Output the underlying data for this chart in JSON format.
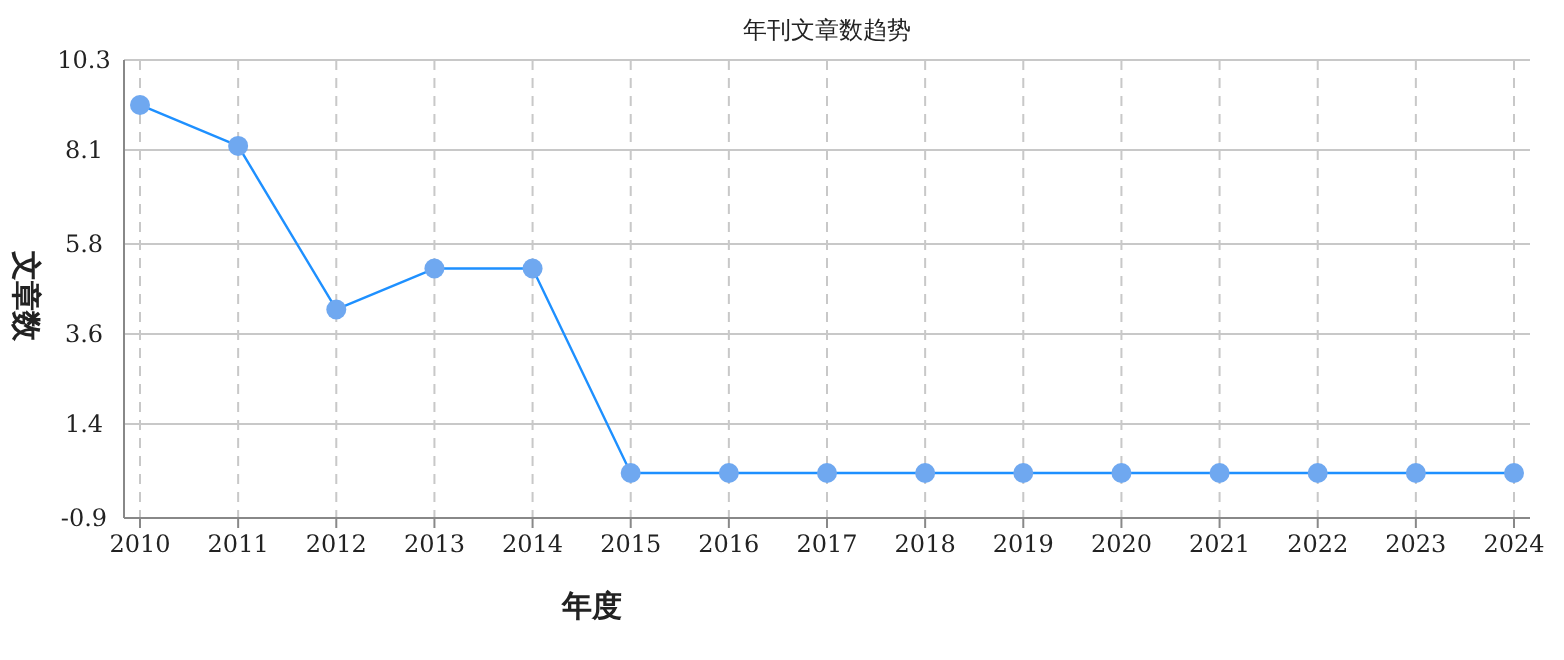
{
  "chart_data": {
    "type": "line",
    "title": "年刊文章数趋势",
    "xlabel": "年度",
    "ylabel": "文章数",
    "categories": [
      "2010",
      "2011",
      "2012",
      "2013",
      "2014",
      "2015",
      "2016",
      "2017",
      "2018",
      "2019",
      "2020",
      "2021",
      "2022",
      "2023",
      "2024"
    ],
    "series": [
      {
        "color": "#1e90ff",
        "values": [
          9.2,
          8.2,
          4.2,
          5.2,
          5.2,
          0.2,
          0.2,
          0.2,
          0.2,
          0.2,
          0.2,
          0.2,
          0.2,
          0.2,
          0.2
        ]
      }
    ],
    "ylim": [
      -0.9,
      10.3
    ],
    "yticks": [
      -0.9,
      1.4,
      3.6,
      5.8,
      8.1,
      10.3
    ],
    "grid": true,
    "marker": "circle",
    "line_style": "solid"
  }
}
